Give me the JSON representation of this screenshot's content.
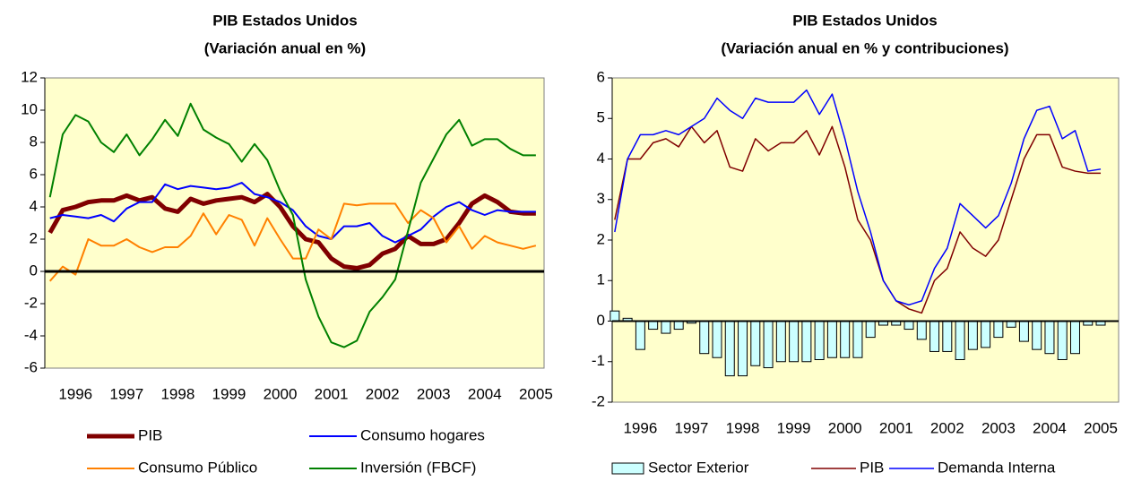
{
  "chart_data": [
    {
      "type": "line",
      "title": "PIB Estados Unidos",
      "subtitle": "(Variación anual en %)",
      "x": [
        1995.5,
        1995.75,
        1996,
        1996.25,
        1996.5,
        1996.75,
        1997,
        1997.25,
        1997.5,
        1997.75,
        1998,
        1998.25,
        1998.5,
        1998.75,
        1999,
        1999.25,
        1999.5,
        1999.75,
        2000,
        2000.25,
        2000.5,
        2000.75,
        2001,
        2001.25,
        2001.5,
        2001.75,
        2002,
        2002.25,
        2002.5,
        2002.75,
        2003,
        2003.25,
        2003.5,
        2003.75,
        2004,
        2004.25,
        2004.5,
        2004.75,
        2005
      ],
      "series": [
        {
          "name": "PIB",
          "color": "#800000",
          "values": [
            2.4,
            3.8,
            4.0,
            4.3,
            4.4,
            4.4,
            4.7,
            4.4,
            4.6,
            3.9,
            3.7,
            4.5,
            4.2,
            4.4,
            4.5,
            4.6,
            4.3,
            4.8,
            4.0,
            2.8,
            2.0,
            1.8,
            0.8,
            0.3,
            0.2,
            0.4,
            1.1,
            1.4,
            2.2,
            1.7,
            1.7,
            2.0,
            3.0,
            4.2,
            4.7,
            4.3,
            3.7,
            3.6,
            3.6
          ]
        },
        {
          "name": "Consumo hogares",
          "color": "#0000ff",
          "values": [
            3.3,
            3.5,
            3.4,
            3.3,
            3.5,
            3.1,
            3.9,
            4.3,
            4.3,
            5.4,
            5.1,
            5.3,
            5.2,
            5.1,
            5.2,
            5.5,
            4.8,
            4.6,
            4.3,
            3.8,
            2.8,
            2.2,
            2.0,
            2.8,
            2.8,
            3.0,
            2.2,
            1.8,
            2.2,
            2.6,
            3.4,
            4.0,
            4.3,
            3.8,
            3.5,
            3.8,
            3.7,
            3.7,
            3.7
          ]
        },
        {
          "name": "Consumo Público",
          "color": "#ff8000",
          "values": [
            -0.6,
            0.3,
            -0.2,
            2.0,
            1.6,
            1.6,
            2.0,
            1.5,
            1.2,
            1.5,
            1.5,
            2.2,
            3.6,
            2.3,
            3.5,
            3.2,
            1.6,
            3.3,
            2.0,
            0.8,
            0.8,
            2.6,
            2.0,
            4.2,
            4.1,
            4.2,
            4.2,
            4.2,
            3.0,
            3.8,
            3.3,
            1.8,
            2.8,
            1.4,
            2.2,
            1.8,
            1.6,
            1.4,
            1.6
          ]
        },
        {
          "name": "Inversión (FBCF)",
          "color": "#008000",
          "values": [
            4.6,
            8.5,
            9.7,
            9.3,
            8.0,
            7.4,
            8.5,
            7.2,
            8.2,
            9.4,
            8.4,
            10.4,
            8.8,
            8.3,
            7.9,
            6.8,
            7.9,
            6.9,
            5.0,
            3.5,
            -0.5,
            -2.8,
            -4.4,
            -4.7,
            -4.3,
            -2.5,
            -1.6,
            -0.5,
            2.5,
            5.5,
            7.0,
            8.5,
            9.4,
            7.8,
            8.2,
            8.2,
            7.6,
            7.2,
            7.2
          ]
        }
      ],
      "xlim": [
        1995.4,
        2005.16
      ],
      "xticks": [
        1996,
        1997,
        1998,
        1999,
        2000,
        2001,
        2002,
        2003,
        2004,
        2005
      ],
      "ylim": [
        -6,
        12
      ],
      "yticks": [
        -6,
        -4,
        -2,
        0,
        2,
        4,
        6,
        8,
        10,
        12
      ],
      "background": "#ffffcc"
    },
    {
      "type": "combo",
      "title": "PIB Estados Unidos",
      "subtitle": "(Variación anual en % y contribuciones)",
      "x": [
        1995.5,
        1995.75,
        1996,
        1996.25,
        1996.5,
        1996.75,
        1997,
        1997.25,
        1997.5,
        1997.75,
        1998,
        1998.25,
        1998.5,
        1998.75,
        1999,
        1999.25,
        1999.5,
        1999.75,
        2000,
        2000.25,
        2000.5,
        2000.75,
        2001,
        2001.25,
        2001.5,
        2001.75,
        2002,
        2002.25,
        2002.5,
        2002.75,
        2003,
        2003.25,
        2003.5,
        2003.75,
        2004,
        2004.25,
        2004.5,
        2004.75,
        2005
      ],
      "series": [
        {
          "name": "Sector Exterior",
          "type": "bar",
          "color": "#ccffff",
          "values": [
            0.25,
            0.07,
            -0.7,
            -0.2,
            -0.3,
            -0.2,
            -0.05,
            -0.8,
            -0.9,
            -1.35,
            -1.35,
            -1.1,
            -1.15,
            -1.0,
            -1.0,
            -1.0,
            -0.95,
            -0.9,
            -0.9,
            -0.9,
            -0.4,
            -0.1,
            -0.1,
            -0.2,
            -0.45,
            -0.75,
            -0.75,
            -0.95,
            -0.7,
            -0.65,
            -0.4,
            -0.15,
            -0.5,
            -0.7,
            -0.8,
            -0.95,
            -0.8,
            -0.1,
            -0.1
          ]
        },
        {
          "name": "PIB",
          "type": "line",
          "color": "#800000",
          "values": [
            2.5,
            4.0,
            4.0,
            4.4,
            4.5,
            4.3,
            4.8,
            4.4,
            4.7,
            3.8,
            3.7,
            4.5,
            4.2,
            4.4,
            4.4,
            4.7,
            4.1,
            4.8,
            3.8,
            2.5,
            2.0,
            1.0,
            0.5,
            0.3,
            0.2,
            1.0,
            1.3,
            2.2,
            1.8,
            1.6,
            2.0,
            3.0,
            4.0,
            4.6,
            4.6,
            3.8,
            3.7,
            3.65,
            3.65
          ]
        },
        {
          "name": "Demanda Interna",
          "type": "line",
          "color": "#0000ff",
          "values": [
            2.2,
            4.0,
            4.6,
            4.6,
            4.7,
            4.6,
            4.8,
            5.0,
            5.5,
            5.2,
            5.0,
            5.5,
            5.4,
            5.4,
            5.4,
            5.7,
            5.1,
            5.6,
            4.5,
            3.2,
            2.2,
            1.0,
            0.5,
            0.4,
            0.5,
            1.3,
            1.8,
            2.9,
            2.6,
            2.3,
            2.6,
            3.4,
            4.5,
            5.2,
            5.3,
            4.5,
            4.7,
            3.7,
            3.75
          ]
        }
      ],
      "xlim": [
        1995.45,
        2005.35
      ],
      "xticks": [
        1996,
        1997,
        1998,
        1999,
        2000,
        2001,
        2002,
        2003,
        2004,
        2005
      ],
      "ylim": [
        -2,
        6
      ],
      "yticks": [
        -2,
        -1,
        0,
        1,
        2,
        3,
        4,
        5,
        6
      ],
      "background": "#ffffcc"
    }
  ]
}
